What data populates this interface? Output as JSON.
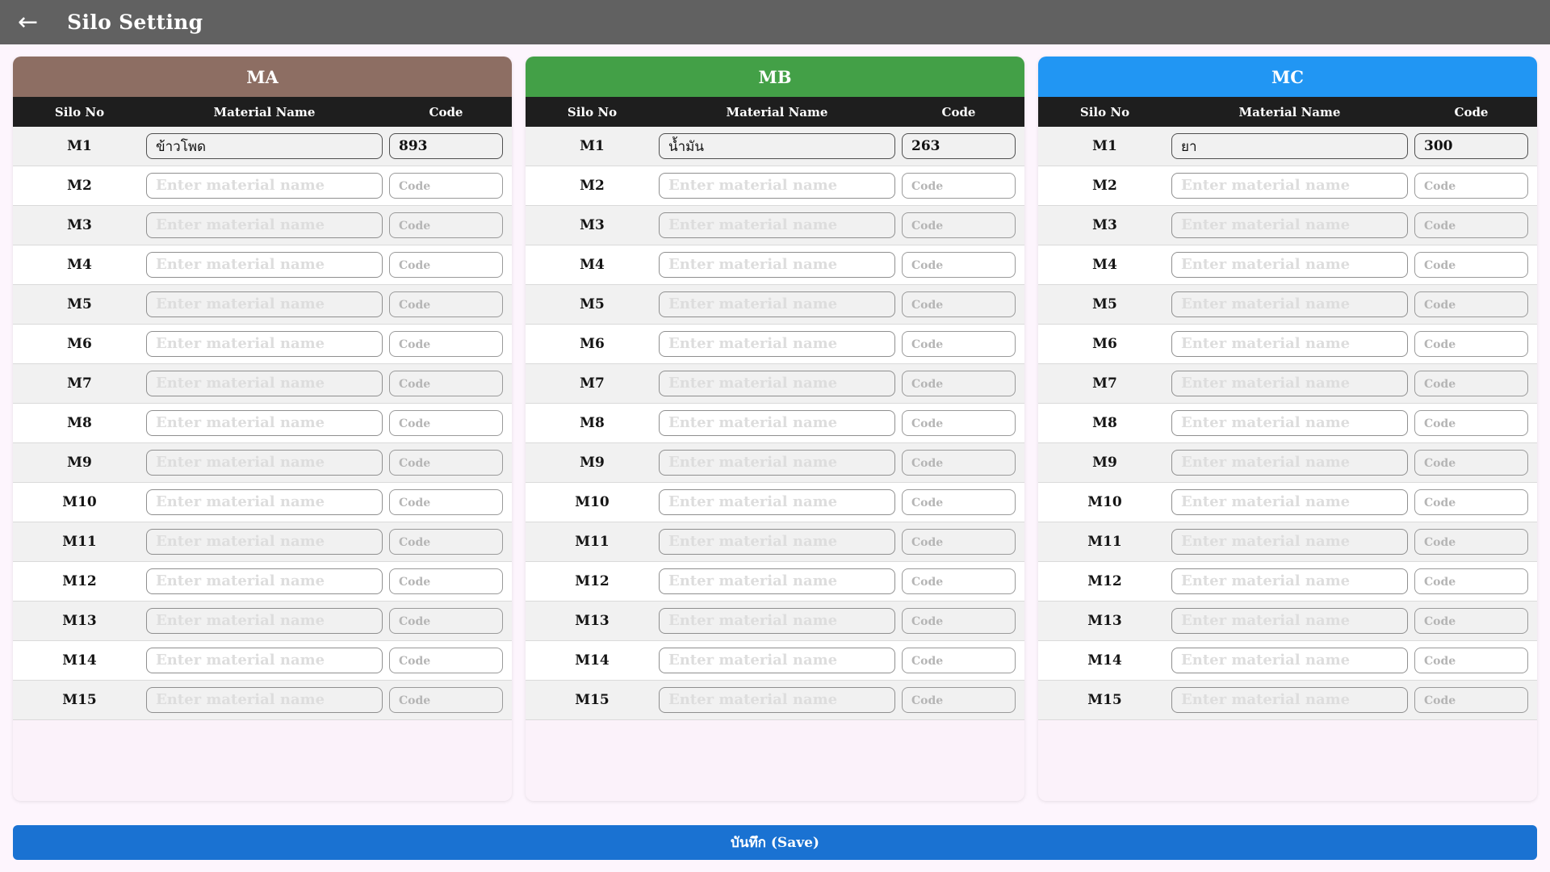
{
  "header": {
    "title": "Silo Setting",
    "back_icon": "←"
  },
  "table_headers": {
    "silo_no": "Silo No",
    "material_name": "Material Name",
    "code": "Code"
  },
  "placeholders": {
    "material_name": "Enter material name",
    "code": "Code"
  },
  "colors": {
    "top_bar": "#616161",
    "table_header_bg": "#1e1e1e",
    "page_bg": "#fdf5fd",
    "save_button": "#1a72d2",
    "row_stripe": "#f1f1f1"
  },
  "columns": [
    {
      "title": "MA",
      "header_color": "#8d6e63",
      "rows": [
        {
          "silo_no": "M1",
          "material_name": "ข้าวโพด",
          "code": "893"
        },
        {
          "silo_no": "M2",
          "material_name": "",
          "code": ""
        },
        {
          "silo_no": "M3",
          "material_name": "",
          "code": ""
        },
        {
          "silo_no": "M4",
          "material_name": "",
          "code": ""
        },
        {
          "silo_no": "M5",
          "material_name": "",
          "code": ""
        },
        {
          "silo_no": "M6",
          "material_name": "",
          "code": ""
        },
        {
          "silo_no": "M7",
          "material_name": "",
          "code": ""
        },
        {
          "silo_no": "M8",
          "material_name": "",
          "code": ""
        },
        {
          "silo_no": "M9",
          "material_name": "",
          "code": ""
        },
        {
          "silo_no": "M10",
          "material_name": "",
          "code": ""
        },
        {
          "silo_no": "M11",
          "material_name": "",
          "code": ""
        },
        {
          "silo_no": "M12",
          "material_name": "",
          "code": ""
        },
        {
          "silo_no": "M13",
          "material_name": "",
          "code": ""
        },
        {
          "silo_no": "M14",
          "material_name": "",
          "code": ""
        },
        {
          "silo_no": "M15",
          "material_name": "",
          "code": ""
        }
      ]
    },
    {
      "title": "MB",
      "header_color": "#43a047",
      "rows": [
        {
          "silo_no": "M1",
          "material_name": "น้ำมัน",
          "code": "263"
        },
        {
          "silo_no": "M2",
          "material_name": "",
          "code": ""
        },
        {
          "silo_no": "M3",
          "material_name": "",
          "code": ""
        },
        {
          "silo_no": "M4",
          "material_name": "",
          "code": ""
        },
        {
          "silo_no": "M5",
          "material_name": "",
          "code": ""
        },
        {
          "silo_no": "M6",
          "material_name": "",
          "code": ""
        },
        {
          "silo_no": "M7",
          "material_name": "",
          "code": ""
        },
        {
          "silo_no": "M8",
          "material_name": "",
          "code": ""
        },
        {
          "silo_no": "M9",
          "material_name": "",
          "code": ""
        },
        {
          "silo_no": "M10",
          "material_name": "",
          "code": ""
        },
        {
          "silo_no": "M11",
          "material_name": "",
          "code": ""
        },
        {
          "silo_no": "M12",
          "material_name": "",
          "code": ""
        },
        {
          "silo_no": "M13",
          "material_name": "",
          "code": ""
        },
        {
          "silo_no": "M14",
          "material_name": "",
          "code": ""
        },
        {
          "silo_no": "M15",
          "material_name": "",
          "code": ""
        }
      ]
    },
    {
      "title": "MC",
      "header_color": "#2196f3",
      "rows": [
        {
          "silo_no": "M1",
          "material_name": "ยา",
          "code": "300"
        },
        {
          "silo_no": "M2",
          "material_name": "",
          "code": ""
        },
        {
          "silo_no": "M3",
          "material_name": "",
          "code": ""
        },
        {
          "silo_no": "M4",
          "material_name": "",
          "code": ""
        },
        {
          "silo_no": "M5",
          "material_name": "",
          "code": ""
        },
        {
          "silo_no": "M6",
          "material_name": "",
          "code": ""
        },
        {
          "silo_no": "M7",
          "material_name": "",
          "code": ""
        },
        {
          "silo_no": "M8",
          "material_name": "",
          "code": ""
        },
        {
          "silo_no": "M9",
          "material_name": "",
          "code": ""
        },
        {
          "silo_no": "M10",
          "material_name": "",
          "code": ""
        },
        {
          "silo_no": "M11",
          "material_name": "",
          "code": ""
        },
        {
          "silo_no": "M12",
          "material_name": "",
          "code": ""
        },
        {
          "silo_no": "M13",
          "material_name": "",
          "code": ""
        },
        {
          "silo_no": "M14",
          "material_name": "",
          "code": ""
        },
        {
          "silo_no": "M15",
          "material_name": "",
          "code": ""
        }
      ]
    }
  ],
  "save_button": {
    "label": "บันทึก (Save)"
  }
}
